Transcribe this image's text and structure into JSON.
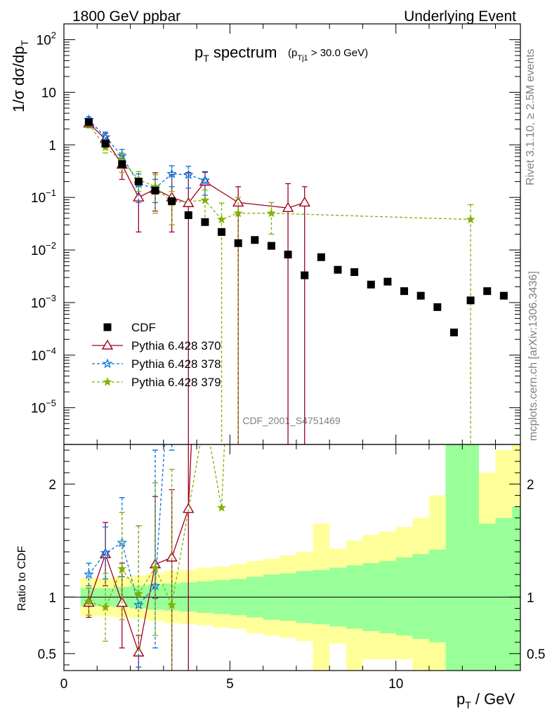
{
  "header": {
    "left": "1800 GeV ppbar",
    "right": "Underlying Event"
  },
  "side": {
    "rivet": "Rivet 3.1.10, ≥ 2.5M events",
    "mcplots": "mcplots.cern.ch [arXiv:1306.3436]"
  },
  "chart_data": {
    "type": "scatter",
    "title_main": "p",
    "title_main_sub": "T",
    "title_main_rest": " spectrum",
    "title_cut": "(p",
    "title_cut_sub": "Tj1",
    "title_cut_rest": " > 30.0 GeV)",
    "analysis_label": "CDF_2001_S4751469",
    "ylabel_top": "1/σ dσ/dp",
    "ylabel_top_sub": "T",
    "ylabel_ratio": "Ratio to CDF",
    "xlabel": "p",
    "xlabel_sub": "T",
    "xlabel_rest": " / GeV",
    "xlim": [
      0,
      13.75
    ],
    "ylim_top_log": [
      2e-06,
      200
    ],
    "ylim_ratio": [
      0.35,
      2.35
    ],
    "x_ticks": [
      0,
      5,
      10
    ],
    "y_ticks_top": [
      {
        "v": 100,
        "base": "10",
        "exp": "2"
      },
      {
        "v": 10,
        "base": "10",
        "exp": ""
      },
      {
        "v": 1,
        "base": "1",
        "exp": ""
      },
      {
        "v": 0.1,
        "base": "10",
        "exp": "−1"
      },
      {
        "v": 0.01,
        "base": "10",
        "exp": "−2"
      },
      {
        "v": 0.001,
        "base": "10",
        "exp": "−3"
      },
      {
        "v": 0.0001,
        "base": "10",
        "exp": "−4"
      },
      {
        "v": 1e-05,
        "base": "10",
        "exp": "−5"
      }
    ],
    "y_ticks_ratio": [
      {
        "v": 0.5,
        "label": "0.5"
      },
      {
        "v": 1,
        "label": "1"
      },
      {
        "v": 2,
        "label": "2"
      }
    ],
    "series": [
      {
        "name": "CDF",
        "color": "#000000",
        "marker": "square",
        "x": [
          0.75,
          1.25,
          1.75,
          2.25,
          2.75,
          3.25,
          3.75,
          4.25,
          4.75,
          5.25,
          5.75,
          6.25,
          6.75,
          7.25,
          7.75,
          8.25,
          8.75,
          9.25,
          9.75,
          10.25,
          10.75,
          11.25,
          11.75,
          12.25,
          12.75,
          13.25
        ],
        "y": [
          2.7,
          1.05,
          0.43,
          0.2,
          0.135,
          0.085,
          0.046,
          0.034,
          0.022,
          0.0135,
          0.0155,
          0.012,
          0.0082,
          0.0033,
          0.0073,
          0.0042,
          0.0038,
          0.0022,
          0.0025,
          0.00165,
          0.00135,
          0.00082,
          0.00027,
          0.0011,
          0.00165,
          0.00135
        ]
      },
      {
        "name": "Pythia 6.428 370",
        "color": "#a00020",
        "marker": "triangle-open",
        "dash": "none",
        "x": [
          0.75,
          1.25,
          1.75,
          2.25,
          2.75,
          3.25,
          3.75,
          4.25,
          5.25,
          6.75,
          7.25
        ],
        "y": [
          2.55,
          1.3,
          0.42,
          0.1,
          0.145,
          0.1,
          0.078,
          0.2,
          0.08,
          0.063,
          0.08
        ],
        "err_lo": [
          0.4,
          0.35,
          0.2,
          0.078,
          0.09,
          0.078,
          0.078,
          0.11,
          0.08,
          0.063,
          0.08
        ],
        "err_hi": [
          0.4,
          0.35,
          0.2,
          0.13,
          0.15,
          0.17,
          0.22,
          0.1,
          0.08,
          0.12,
          0.08
        ],
        "ratio_y": [
          0.95,
          1.38,
          0.95,
          0.51,
          1.29,
          1.35,
          1.78,
          5.0,
          5.0,
          5.0,
          5.0
        ],
        "ratio_lo": [
          0.13,
          0.28,
          0.4,
          0.35,
          0.3,
          1.1,
          1.78,
          0,
          0,
          0,
          0
        ],
        "ratio_hi": [
          0.13,
          0.28,
          0.35,
          0.15,
          0.6,
          0.6,
          0.8,
          0,
          0,
          0,
          0
        ]
      },
      {
        "name": "Pythia 6.428 378",
        "color": "#0070e0",
        "marker": "star-open",
        "dash": "4,3",
        "x": [
          0.75,
          1.25,
          1.75,
          2.25,
          2.75,
          3.25,
          3.75,
          4.25
        ],
        "y": [
          3.0,
          1.4,
          0.62,
          0.18,
          0.15,
          0.28,
          0.27,
          0.21
        ],
        "err_lo": [
          0.4,
          0.35,
          0.2,
          0.1,
          0.07,
          0.12,
          0.12,
          0.1
        ],
        "err_hi": [
          0.4,
          0.35,
          0.2,
          0.1,
          0.07,
          0.12,
          0.12,
          0.1
        ],
        "ratio_y": [
          1.2,
          1.39,
          1.48,
          0.93,
          1.1,
          3.3,
          5.0,
          5.0
        ],
        "ratio_lo": [
          0.1,
          0.23,
          0.3,
          0.55,
          0.55,
          1.0,
          0,
          0
        ],
        "ratio_hi": [
          0.1,
          0.23,
          0.4,
          0.7,
          1.2,
          1.0,
          0,
          0
        ]
      },
      {
        "name": "Pythia 6.428 379",
        "color": "#80b000",
        "marker": "star",
        "dash": "4,3",
        "x": [
          0.75,
          1.25,
          1.75,
          2.25,
          2.75,
          3.25,
          4.25,
          4.75,
          5.25,
          6.25,
          12.25
        ],
        "y": [
          2.5,
          0.9,
          0.5,
          0.22,
          0.16,
          0.08,
          0.088,
          0.038,
          0.05,
          0.05,
          0.038
        ],
        "err_lo": [
          0.4,
          0.2,
          0.2,
          0.09,
          0.11,
          0.05,
          0.05,
          0.038,
          0.05,
          0.03,
          0.038
        ],
        "err_hi": [
          0.4,
          0.2,
          0.2,
          0.09,
          0.11,
          0.05,
          0.05,
          0.04,
          0.05,
          0.03,
          0.035
        ],
        "ratio_y": [
          0.96,
          0.91,
          1.25,
          1.03,
          1.26,
          0.93,
          2.6,
          1.79,
          5.0,
          5.0,
          5.0
        ],
        "ratio_lo": [
          0.12,
          0.3,
          0.45,
          0.5,
          0.6,
          1.5,
          0,
          0,
          0,
          0,
          0
        ],
        "ratio_hi": [
          0.12,
          0.3,
          0.5,
          0.6,
          0.75,
          1.2,
          0,
          0,
          0,
          0,
          0
        ]
      }
    ],
    "ratio_bands": {
      "edges": [
        0.5,
        1.0,
        1.5,
        2.0,
        2.5,
        3.0,
        3.5,
        4.0,
        4.5,
        5.0,
        5.5,
        6.0,
        6.5,
        7.0,
        7.5,
        8.0,
        8.5,
        9.0,
        9.5,
        10.0,
        10.5,
        11.0,
        11.5,
        12.0,
        12.5,
        13.0,
        13.5
      ],
      "inner": [
        [
          0.92,
          1.08
        ],
        [
          0.92,
          1.08
        ],
        [
          0.91,
          1.09
        ],
        [
          0.9,
          1.1
        ],
        [
          0.89,
          1.11
        ],
        [
          0.88,
          1.12
        ],
        [
          0.87,
          1.13
        ],
        [
          0.86,
          1.14
        ],
        [
          0.85,
          1.15
        ],
        [
          0.84,
          1.16
        ],
        [
          0.82,
          1.18
        ],
        [
          0.8,
          1.2
        ],
        [
          0.79,
          1.21
        ],
        [
          0.77,
          1.23
        ],
        [
          0.76,
          1.24
        ],
        [
          0.74,
          1.26
        ],
        [
          0.72,
          1.28
        ],
        [
          0.7,
          1.3
        ],
        [
          0.68,
          1.32
        ],
        [
          0.66,
          1.35
        ],
        [
          0.63,
          1.38
        ],
        [
          0.6,
          1.42
        ],
        [
          0.35,
          2.4
        ],
        [
          0.35,
          2.4
        ],
        [
          0.35,
          1.65
        ],
        [
          0.35,
          1.7
        ],
        [
          0.35,
          1.8
        ]
      ],
      "outer": [
        [
          0.83,
          1.17
        ],
        [
          0.83,
          1.17
        ],
        [
          0.82,
          1.18
        ],
        [
          0.81,
          1.19
        ],
        [
          0.79,
          1.21
        ],
        [
          0.77,
          1.23
        ],
        [
          0.76,
          1.24
        ],
        [
          0.75,
          1.26
        ],
        [
          0.73,
          1.27
        ],
        [
          0.72,
          1.29
        ],
        [
          0.68,
          1.32
        ],
        [
          0.66,
          1.34
        ],
        [
          0.64,
          1.37
        ],
        [
          0.61,
          1.4
        ],
        [
          0.35,
          1.65
        ],
        [
          0.59,
          1.43
        ],
        [
          0.35,
          1.5
        ],
        [
          0.45,
          1.55
        ],
        [
          0.45,
          1.58
        ],
        [
          0.45,
          1.62
        ],
        [
          0.35,
          1.7
        ],
        [
          0.35,
          1.9
        ],
        [
          0.35,
          2.35
        ],
        [
          0.35,
          2.35
        ],
        [
          0.35,
          2.1
        ],
        [
          0.35,
          2.3
        ],
        [
          0.35,
          2.4
        ]
      ],
      "inner_color": "#99ff99",
      "outer_color": "#ffff99"
    },
    "legend_position": "lower-left"
  }
}
